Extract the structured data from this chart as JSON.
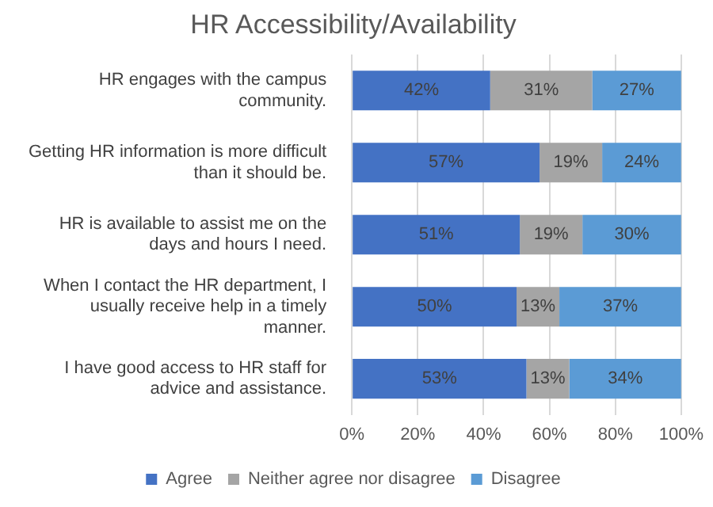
{
  "chart_data": {
    "type": "bar",
    "orientation": "horizontal",
    "stacked": true,
    "title": "HR Accessibility/Availability",
    "categories": [
      "HR engages with the campus community.",
      "Getting HR information is more difficult than it should be.",
      "HR is available to assist me on the days and hours I need.",
      "When I contact the HR department, I usually receive help in a timely manner.",
      "I have good access to HR staff for advice and assistance."
    ],
    "series": [
      {
        "name": "Agree",
        "color": "#4472c4",
        "values": [
          42,
          57,
          51,
          50,
          53
        ],
        "value_labels": [
          "42%",
          "57%",
          "51%",
          "50%",
          "53%"
        ]
      },
      {
        "name": "Neither agree nor disagree",
        "color": "#a5a5a5",
        "values": [
          31,
          19,
          19,
          13,
          13
        ],
        "value_labels": [
          "31%",
          "19%",
          "19%",
          "13%",
          "13%"
        ]
      },
      {
        "name": "Disagree",
        "color": "#5b9bd5",
        "values": [
          27,
          24,
          30,
          37,
          34
        ],
        "value_labels": [
          "27%",
          "24%",
          "30%",
          "37%",
          "34%"
        ]
      }
    ],
    "xlim": [
      0,
      100
    ],
    "xticks": [
      {
        "value": 0,
        "label": "0%"
      },
      {
        "value": 20,
        "label": "20%"
      },
      {
        "value": 40,
        "label": "40%"
      },
      {
        "value": 60,
        "label": "60%"
      },
      {
        "value": 80,
        "label": "80%"
      },
      {
        "value": 100,
        "label": "100%"
      }
    ],
    "grid": "x",
    "legend": "bottom"
  }
}
